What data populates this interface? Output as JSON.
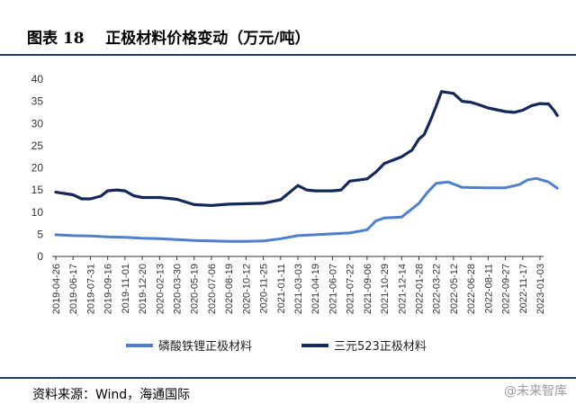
{
  "header": {
    "title": "图表 18    正极材料价格变动（万元/吨）"
  },
  "footer": {
    "source": "资料来源：Wind，海通国际",
    "watermark": "@未来智库"
  },
  "colors": {
    "lfp": "#4f7fcf",
    "ncm523": "#14285a",
    "rule": "#1f3a6e"
  },
  "chart_data": {
    "type": "line",
    "title": "正极材料价格变动（万元/吨）",
    "ylim": [
      0,
      40
    ],
    "yticks": [
      0,
      5,
      10,
      15,
      20,
      25,
      30,
      35,
      40
    ],
    "grid": false,
    "legend_position": "bottom",
    "categories": [
      "2019-04-26",
      "2019-06-17",
      "2019-07-31",
      "2019-09-16",
      "2019-11-01",
      "2019-12-20",
      "2020-02-13",
      "2020-03-30",
      "2020-05-19",
      "2020-07-06",
      "2020-08-19",
      "2020-10-12",
      "2020-11-25",
      "2021-01-11",
      "2021-03-03",
      "2021-04-19",
      "2021-06-07",
      "2021-07-22",
      "2021-09-06",
      "2021-10-29",
      "2021-12-14",
      "2022-01-28",
      "2022-03-22",
      "2022-05-12",
      "2022-06-28",
      "2022-08-11",
      "2022-09-27",
      "2022-11-17",
      "2023-01-03"
    ],
    "series": [
      {
        "name": "磷酸铁锂正极材料",
        "color": "#4f7fcf",
        "points": [
          [
            0,
            4.9
          ],
          [
            1,
            4.7
          ],
          [
            2,
            4.6
          ],
          [
            3,
            4.4
          ],
          [
            4,
            4.3
          ],
          [
            5,
            4.1
          ],
          [
            6,
            4.0
          ],
          [
            7,
            3.8
          ],
          [
            8,
            3.6
          ],
          [
            9,
            3.5
          ],
          [
            10,
            3.4
          ],
          [
            11,
            3.4
          ],
          [
            12,
            3.5
          ],
          [
            13,
            4.0
          ],
          [
            14,
            4.7
          ],
          [
            15,
            4.9
          ],
          [
            16,
            5.1
          ],
          [
            17,
            5.3
          ],
          [
            18,
            6.0
          ],
          [
            18.5,
            8.0
          ],
          [
            19,
            8.7
          ],
          [
            20,
            8.9
          ],
          [
            21,
            12.0
          ],
          [
            21.5,
            14.5
          ],
          [
            22,
            16.5
          ],
          [
            22.7,
            16.8
          ],
          [
            23.5,
            15.6
          ],
          [
            25,
            15.5
          ],
          [
            26,
            15.5
          ],
          [
            26.8,
            16.2
          ],
          [
            27.3,
            17.3
          ],
          [
            27.8,
            17.6
          ],
          [
            28.5,
            16.8
          ],
          [
            29,
            15.4
          ]
        ]
      },
      {
        "name": "三元523正极材料",
        "color": "#14285a",
        "points": [
          [
            0,
            14.5
          ],
          [
            1,
            13.9
          ],
          [
            1.5,
            13.0
          ],
          [
            2,
            13.0
          ],
          [
            2.6,
            13.6
          ],
          [
            3,
            14.8
          ],
          [
            3.5,
            15.0
          ],
          [
            4,
            14.8
          ],
          [
            4.5,
            13.7
          ],
          [
            5,
            13.3
          ],
          [
            6,
            13.3
          ],
          [
            7,
            12.9
          ],
          [
            8,
            11.7
          ],
          [
            9,
            11.5
          ],
          [
            10,
            11.8
          ],
          [
            11,
            11.9
          ],
          [
            12,
            12.0
          ],
          [
            13,
            12.8
          ],
          [
            14,
            16.0
          ],
          [
            14.5,
            15.0
          ],
          [
            15,
            14.8
          ],
          [
            16,
            14.8
          ],
          [
            16.5,
            15.0
          ],
          [
            17,
            17.0
          ],
          [
            18,
            17.5
          ],
          [
            18.5,
            19.0
          ],
          [
            19,
            21.0
          ],
          [
            20,
            22.5
          ],
          [
            20.6,
            24.0
          ],
          [
            21,
            26.5
          ],
          [
            21.3,
            27.5
          ],
          [
            21.7,
            31.0
          ],
          [
            22,
            34.0
          ],
          [
            22.3,
            37.2
          ],
          [
            23,
            36.8
          ],
          [
            23.5,
            35.0
          ],
          [
            24,
            34.8
          ],
          [
            24.5,
            34.2
          ],
          [
            25,
            33.5
          ],
          [
            26,
            32.7
          ],
          [
            26.5,
            32.5
          ],
          [
            27,
            33.0
          ],
          [
            27.5,
            34.0
          ],
          [
            28,
            34.5
          ],
          [
            28.5,
            34.4
          ],
          [
            28.8,
            33.0
          ],
          [
            29,
            31.8
          ]
        ]
      }
    ]
  }
}
